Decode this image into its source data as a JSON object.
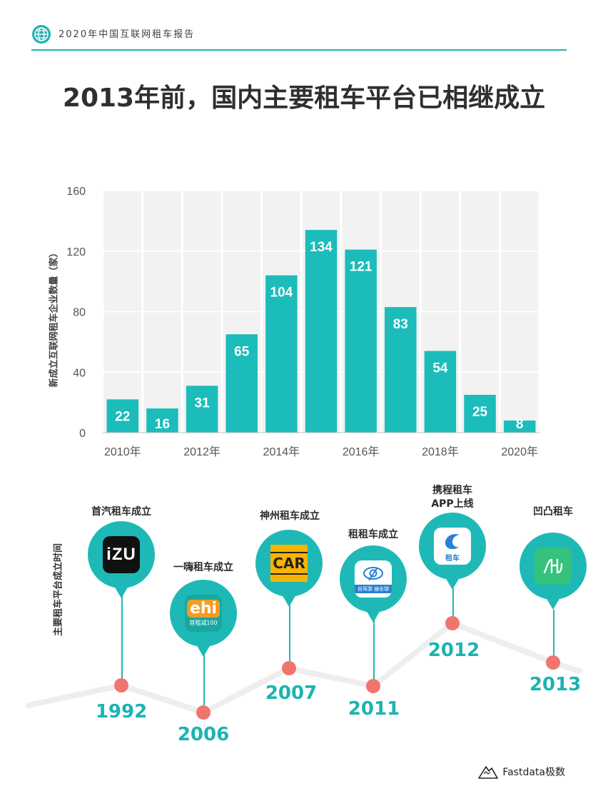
{
  "header": {
    "report_title": "2020年中国互联网租车报告"
  },
  "title": "2013年前，国内主要租车平台已相继成立",
  "colors": {
    "accent": "#1eb9b6",
    "bar": "#1cbcbb",
    "dot": "#f0756c"
  },
  "chart_data": {
    "type": "bar",
    "categories": [
      "2010年",
      "2011年",
      "2012年",
      "2013年",
      "2014年",
      "2015年",
      "2016年",
      "2017年",
      "2018年",
      "2019年",
      "2020年"
    ],
    "tick_labels_shown": [
      "2010年",
      "2012年",
      "2014年",
      "2016年",
      "2018年",
      "2020年"
    ],
    "values": [
      22,
      16,
      31,
      65,
      104,
      134,
      121,
      83,
      54,
      25,
      8
    ],
    "ylabel": "新成立互联网租车企业数量（家）",
    "ylim": [
      0,
      160
    ],
    "yticks": [
      0,
      40,
      80,
      120,
      160
    ],
    "grid": true
  },
  "timeline": {
    "axis_label": "主要租车平台成立时间",
    "events": [
      {
        "label": "首汽租车成立",
        "year": "1992",
        "logo": "iZU"
      },
      {
        "label": "一嗨租车成立",
        "year": "2006",
        "logo": "ehi",
        "logo_sub": "首租减100"
      },
      {
        "label": "神州租车成立",
        "year": "2007",
        "logo": "CAR"
      },
      {
        "label": "租租车成立",
        "year": "2011",
        "logo_sub": "自驾游 遍全球"
      },
      {
        "label": "携程租车\nAPP上线",
        "year": "2012",
        "logo_sub": "租车"
      },
      {
        "label": "凹凸租车",
        "year": "2013"
      }
    ]
  },
  "footer": {
    "brand": "Fastdata极数"
  }
}
